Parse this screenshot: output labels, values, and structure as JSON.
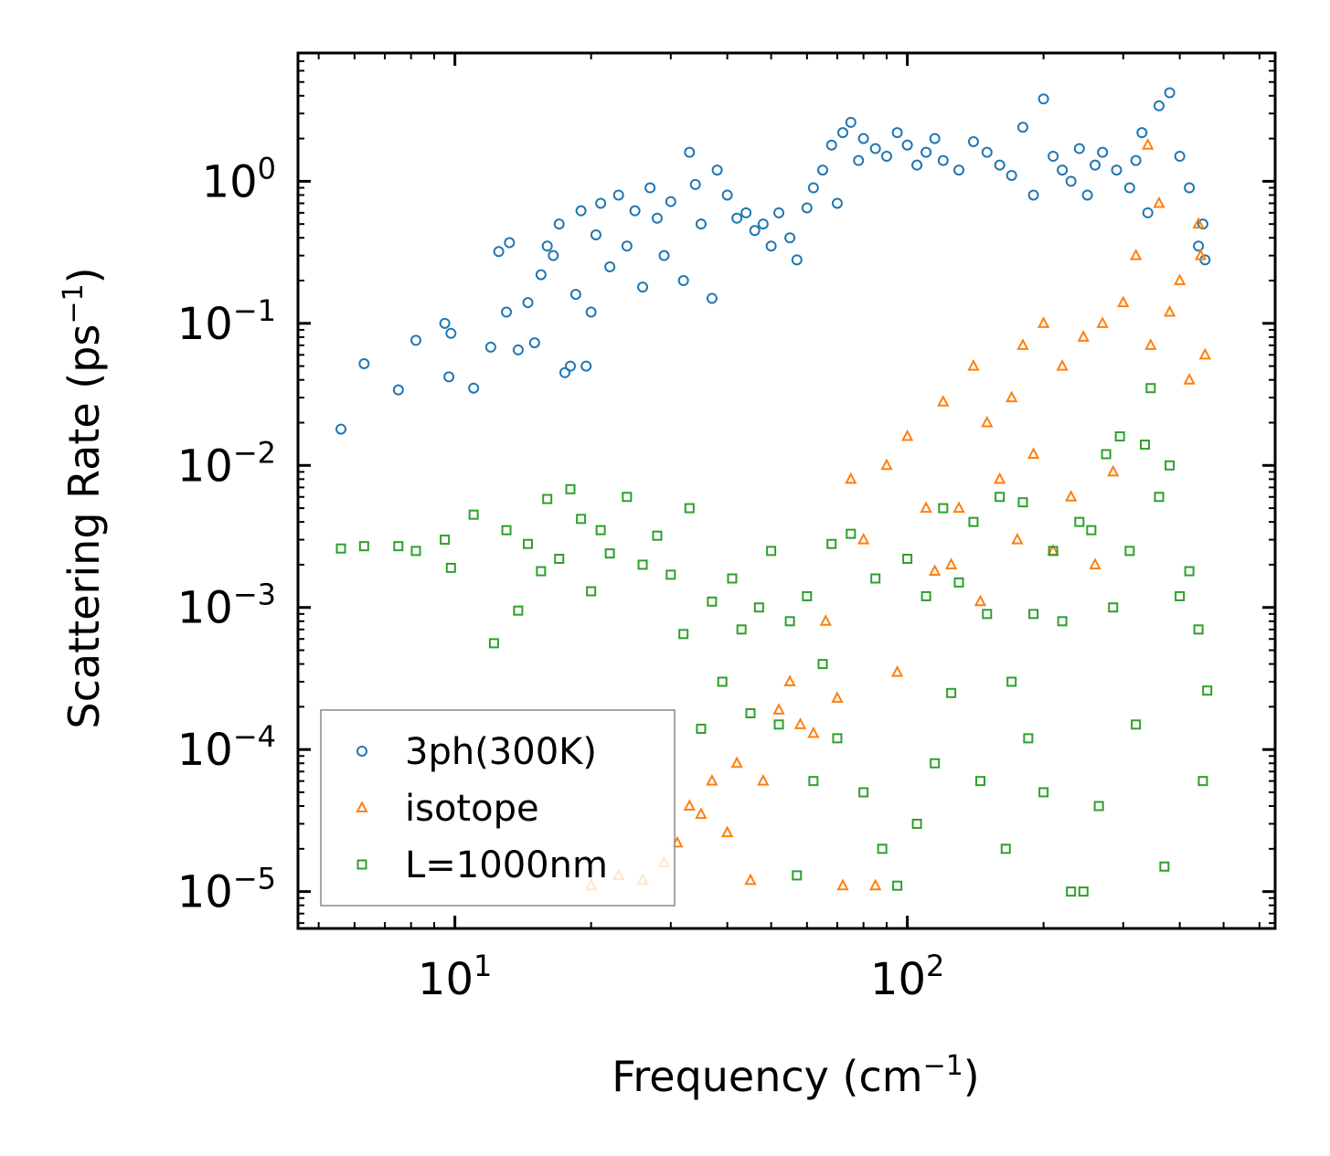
{
  "chart_data": {
    "type": "scatter",
    "title": "",
    "xlabel": "Frequency (cm",
    "xlabel_sup": "−1",
    "xlabel_end": ")",
    "ylabel": "Scattering Rate (ps",
    "ylabel_sup": "−1",
    "ylabel_end": ")",
    "xscale": "log",
    "yscale": "log",
    "xlim": [
      4.5,
      650
    ],
    "ylim": [
      5.5e-06,
      8
    ],
    "x_ticks": [
      {
        "value": 10,
        "base": "10",
        "exp": "1"
      },
      {
        "value": 100,
        "base": "10",
        "exp": "2"
      }
    ],
    "y_ticks": [
      {
        "value": 1,
        "base": "10",
        "exp": "0"
      },
      {
        "value": 0.1,
        "base": "10",
        "exp": "−1"
      },
      {
        "value": 0.01,
        "base": "10",
        "exp": "−2"
      },
      {
        "value": 0.001,
        "base": "10",
        "exp": "−3"
      },
      {
        "value": 0.0001,
        "base": "10",
        "exp": "−4"
      },
      {
        "value": 1e-05,
        "base": "10",
        "exp": "−5"
      }
    ],
    "legend_position": "lower-left",
    "series": [
      {
        "name": "3ph(300K)",
        "marker": "circle",
        "color": "#1f77b4",
        "points": [
          [
            5.6,
            0.018
          ],
          [
            6.3,
            0.052
          ],
          [
            7.5,
            0.034
          ],
          [
            8.2,
            0.076
          ],
          [
            9.5,
            0.1
          ],
          [
            9.7,
            0.042
          ],
          [
            9.8,
            0.085
          ],
          [
            11,
            0.035
          ],
          [
            12,
            0.068
          ],
          [
            12.5,
            0.32
          ],
          [
            13,
            0.12
          ],
          [
            13.2,
            0.37
          ],
          [
            13.8,
            0.065
          ],
          [
            14.5,
            0.14
          ],
          [
            15,
            0.073
          ],
          [
            15.5,
            0.22
          ],
          [
            16,
            0.35
          ],
          [
            16.5,
            0.3
          ],
          [
            17,
            0.5
          ],
          [
            17.5,
            0.045
          ],
          [
            18,
            0.05
          ],
          [
            18.5,
            0.16
          ],
          [
            19,
            0.62
          ],
          [
            19.5,
            0.05
          ],
          [
            20,
            0.12
          ],
          [
            20.5,
            0.42
          ],
          [
            21,
            0.7
          ],
          [
            22,
            0.25
          ],
          [
            23,
            0.8
          ],
          [
            24,
            0.35
          ],
          [
            25,
            0.62
          ],
          [
            26,
            0.18
          ],
          [
            27,
            0.9
          ],
          [
            28,
            0.55
          ],
          [
            29,
            0.3
          ],
          [
            30,
            0.72
          ],
          [
            32,
            0.2
          ],
          [
            33,
            1.6
          ],
          [
            34,
            0.95
          ],
          [
            35,
            0.5
          ],
          [
            37,
            0.15
          ],
          [
            38,
            1.2
          ],
          [
            40,
            0.8
          ],
          [
            42,
            0.55
          ],
          [
            44,
            0.6
          ],
          [
            46,
            0.45
          ],
          [
            48,
            0.5
          ],
          [
            50,
            0.35
          ],
          [
            52,
            0.6
          ],
          [
            55,
            0.4
          ],
          [
            57,
            0.28
          ],
          [
            60,
            0.65
          ],
          [
            62,
            0.9
          ],
          [
            65,
            1.2
          ],
          [
            68,
            1.8
          ],
          [
            70,
            0.7
          ],
          [
            72,
            2.2
          ],
          [
            75,
            2.6
          ],
          [
            78,
            1.4
          ],
          [
            80,
            2.0
          ],
          [
            85,
            1.7
          ],
          [
            90,
            1.5
          ],
          [
            95,
            2.2
          ],
          [
            100,
            1.8
          ],
          [
            105,
            1.3
          ],
          [
            110,
            1.6
          ],
          [
            115,
            2.0
          ],
          [
            120,
            1.4
          ],
          [
            130,
            1.2
          ],
          [
            140,
            1.9
          ],
          [
            150,
            1.6
          ],
          [
            160,
            1.3
          ],
          [
            170,
            1.1
          ],
          [
            180,
            2.4
          ],
          [
            190,
            0.8
          ],
          [
            200,
            3.8
          ],
          [
            210,
            1.5
          ],
          [
            220,
            1.2
          ],
          [
            230,
            1.0
          ],
          [
            240,
            1.7
          ],
          [
            250,
            0.8
          ],
          [
            260,
            1.3
          ],
          [
            270,
            1.6
          ],
          [
            290,
            1.2
          ],
          [
            310,
            0.9
          ],
          [
            320,
            1.4
          ],
          [
            330,
            2.2
          ],
          [
            340,
            0.6
          ],
          [
            360,
            3.4
          ],
          [
            380,
            4.2
          ],
          [
            400,
            1.5
          ],
          [
            420,
            0.9
          ],
          [
            440,
            0.35
          ],
          [
            450,
            0.5
          ],
          [
            455,
            0.28
          ]
        ]
      },
      {
        "name": "isotope",
        "marker": "triangle",
        "color": "#ff7f0e",
        "points": [
          [
            20,
            1.1e-05
          ],
          [
            23,
            1.3e-05
          ],
          [
            26,
            1.2e-05
          ],
          [
            29,
            1.6e-05
          ],
          [
            31,
            2.2e-05
          ],
          [
            33,
            4e-05
          ],
          [
            35,
            3.5e-05
          ],
          [
            37,
            6e-05
          ],
          [
            40,
            2.6e-05
          ],
          [
            42,
            8e-05
          ],
          [
            45,
            1.2e-05
          ],
          [
            48,
            6e-05
          ],
          [
            52,
            0.00019
          ],
          [
            55,
            0.0003
          ],
          [
            58,
            0.00015
          ],
          [
            62,
            0.00013
          ],
          [
            66,
            0.0008
          ],
          [
            70,
            0.00023
          ],
          [
            72,
            1.1e-05
          ],
          [
            75,
            0.008
          ],
          [
            80,
            0.003
          ],
          [
            85,
            1.1e-05
          ],
          [
            90,
            0.01
          ],
          [
            95,
            0.00035
          ],
          [
            100,
            0.016
          ],
          [
            110,
            0.005
          ],
          [
            115,
            0.0018
          ],
          [
            120,
            0.028
          ],
          [
            125,
            0.002
          ],
          [
            130,
            0.005
          ],
          [
            140,
            0.05
          ],
          [
            145,
            0.0011
          ],
          [
            150,
            0.02
          ],
          [
            160,
            0.008
          ],
          [
            170,
            0.03
          ],
          [
            175,
            0.003
          ],
          [
            180,
            0.07
          ],
          [
            190,
            0.012
          ],
          [
            200,
            0.1
          ],
          [
            210,
            0.0025
          ],
          [
            220,
            0.05
          ],
          [
            230,
            0.006
          ],
          [
            245,
            0.08
          ],
          [
            260,
            0.002
          ],
          [
            270,
            0.1
          ],
          [
            285,
            0.009
          ],
          [
            300,
            0.14
          ],
          [
            320,
            0.3
          ],
          [
            340,
            1.8
          ],
          [
            345,
            0.07
          ],
          [
            360,
            0.7
          ],
          [
            380,
            0.12
          ],
          [
            400,
            0.2
          ],
          [
            420,
            0.04
          ],
          [
            440,
            0.5
          ],
          [
            445,
            0.3
          ],
          [
            455,
            0.06
          ]
        ]
      },
      {
        "name": "L=1000nm",
        "marker": "square",
        "color": "#2ca02c",
        "points": [
          [
            5.6,
            0.0026
          ],
          [
            6.3,
            0.0027
          ],
          [
            7.5,
            0.0027
          ],
          [
            8.2,
            0.0025
          ],
          [
            9.5,
            0.003
          ],
          [
            9.8,
            0.0019
          ],
          [
            11,
            0.0045
          ],
          [
            12.2,
            0.00056
          ],
          [
            13,
            0.0035
          ],
          [
            13.8,
            0.00095
          ],
          [
            14.5,
            0.0028
          ],
          [
            15.5,
            0.0018
          ],
          [
            16,
            0.0058
          ],
          [
            17,
            0.0022
          ],
          [
            18,
            0.0068
          ],
          [
            19,
            0.0042
          ],
          [
            20,
            0.0013
          ],
          [
            21,
            0.0035
          ],
          [
            22,
            0.0024
          ],
          [
            24,
            0.006
          ],
          [
            26,
            0.002
          ],
          [
            28,
            0.0032
          ],
          [
            30,
            0.0017
          ],
          [
            32,
            0.00065
          ],
          [
            33,
            0.005
          ],
          [
            35,
            0.00014
          ],
          [
            37,
            0.0011
          ],
          [
            39,
            0.0003
          ],
          [
            41,
            0.0016
          ],
          [
            43,
            0.0007
          ],
          [
            45,
            0.00018
          ],
          [
            47,
            0.001
          ],
          [
            50,
            0.0025
          ],
          [
            52,
            0.00015
          ],
          [
            55,
            0.0008
          ],
          [
            57,
            1.3e-05
          ],
          [
            60,
            0.0012
          ],
          [
            62,
            6e-05
          ],
          [
            65,
            0.0004
          ],
          [
            68,
            0.0028
          ],
          [
            70,
            0.00012
          ],
          [
            75,
            0.0033
          ],
          [
            80,
            5e-05
          ],
          [
            85,
            0.0016
          ],
          [
            88,
            2e-05
          ],
          [
            95,
            1.1e-05
          ],
          [
            100,
            0.0022
          ],
          [
            105,
            3e-05
          ],
          [
            110,
            0.0012
          ],
          [
            115,
            8e-05
          ],
          [
            120,
            0.005
          ],
          [
            125,
            0.00025
          ],
          [
            130,
            0.0015
          ],
          [
            140,
            0.004
          ],
          [
            145,
            6e-05
          ],
          [
            150,
            0.0009
          ],
          [
            160,
            0.006
          ],
          [
            165,
            2e-05
          ],
          [
            170,
            0.0003
          ],
          [
            180,
            0.0055
          ],
          [
            185,
            0.00012
          ],
          [
            190,
            0.0009
          ],
          [
            200,
            5e-05
          ],
          [
            210,
            0.0025
          ],
          [
            220,
            0.0008
          ],
          [
            230,
            1e-05
          ],
          [
            240,
            0.004
          ],
          [
            245,
            1e-05
          ],
          [
            255,
            0.0035
          ],
          [
            265,
            4e-05
          ],
          [
            275,
            0.012
          ],
          [
            285,
            0.001
          ],
          [
            295,
            0.016
          ],
          [
            310,
            0.0025
          ],
          [
            320,
            0.00015
          ],
          [
            335,
            0.014
          ],
          [
            345,
            0.035
          ],
          [
            360,
            0.006
          ],
          [
            370,
            1.5e-05
          ],
          [
            380,
            0.01
          ],
          [
            400,
            0.0012
          ],
          [
            420,
            0.0018
          ],
          [
            440,
            0.0007
          ],
          [
            450,
            6e-05
          ],
          [
            460,
            0.00026
          ]
        ]
      }
    ]
  }
}
